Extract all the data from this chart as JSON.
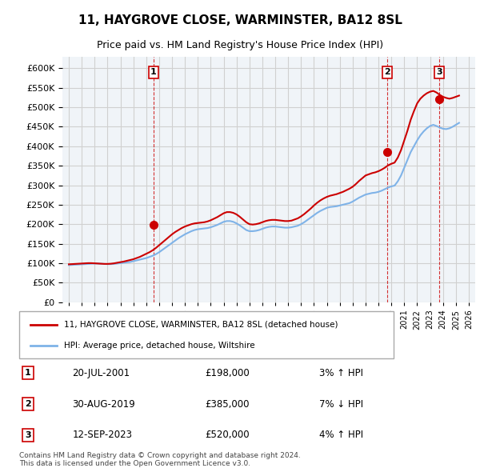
{
  "title": "11, HAYGROVE CLOSE, WARMINSTER, BA12 8SL",
  "subtitle": "Price paid vs. HM Land Registry's House Price Index (HPI)",
  "ylabel_values": [
    0,
    50000,
    100000,
    150000,
    200000,
    250000,
    300000,
    350000,
    400000,
    450000,
    500000,
    550000,
    600000
  ],
  "ylim": [
    0,
    630000
  ],
  "xlim_start": 1994.5,
  "xlim_end": 2026.5,
  "x_ticks": [
    1995,
    1996,
    1997,
    1998,
    1999,
    2000,
    2001,
    2002,
    2003,
    2004,
    2005,
    2006,
    2007,
    2008,
    2009,
    2010,
    2011,
    2012,
    2013,
    2014,
    2015,
    2016,
    2017,
    2018,
    2019,
    2020,
    2021,
    2022,
    2023,
    2024,
    2025,
    2026
  ],
  "hpi_line_color": "#7fb3e8",
  "price_line_color": "#cc0000",
  "transaction_marker_color": "#cc0000",
  "dashed_line_color": "#cc0000",
  "grid_color": "#d0d0d0",
  "background_color": "#f0f4f8",
  "legend_entry1": "11, HAYGROVE CLOSE, WARMINSTER, BA12 8SL (detached house)",
  "legend_entry2": "HPI: Average price, detached house, Wiltshire",
  "transactions": [
    {
      "label": "1",
      "date": "20-JUL-2001",
      "year": 2001.55,
      "price": 198000,
      "hpi_pct": "3%",
      "hpi_dir": "↑"
    },
    {
      "label": "2",
      "date": "30-AUG-2019",
      "year": 2019.66,
      "price": 385000,
      "hpi_pct": "7%",
      "hpi_dir": "↓"
    },
    {
      "label": "3",
      "date": "12-SEP-2023",
      "year": 2023.7,
      "price": 520000,
      "hpi_pct": "4%",
      "hpi_dir": "↑"
    }
  ],
  "footer_line1": "Contains HM Land Registry data © Crown copyright and database right 2024.",
  "footer_line2": "This data is licensed under the Open Government Licence v3.0.",
  "hpi_years": [
    1995,
    1995.25,
    1995.5,
    1995.75,
    1996,
    1996.25,
    1996.5,
    1996.75,
    1997,
    1997.25,
    1997.5,
    1997.75,
    1998,
    1998.25,
    1998.5,
    1998.75,
    1999,
    1999.25,
    1999.5,
    1999.75,
    2000,
    2000.25,
    2000.5,
    2000.75,
    2001,
    2001.25,
    2001.5,
    2001.75,
    2002,
    2002.25,
    2002.5,
    2002.75,
    2003,
    2003.25,
    2003.5,
    2003.75,
    2004,
    2004.25,
    2004.5,
    2004.75,
    2005,
    2005.25,
    2005.5,
    2005.75,
    2006,
    2006.25,
    2006.5,
    2006.75,
    2007,
    2007.25,
    2007.5,
    2007.75,
    2008,
    2008.25,
    2008.5,
    2008.75,
    2009,
    2009.25,
    2009.5,
    2009.75,
    2010,
    2010.25,
    2010.5,
    2010.75,
    2011,
    2011.25,
    2011.5,
    2011.75,
    2012,
    2012.25,
    2012.5,
    2012.75,
    2013,
    2013.25,
    2013.5,
    2013.75,
    2014,
    2014.25,
    2014.5,
    2014.75,
    2015,
    2015.25,
    2015.5,
    2015.75,
    2016,
    2016.25,
    2016.5,
    2016.75,
    2017,
    2017.25,
    2017.5,
    2017.75,
    2018,
    2018.25,
    2018.5,
    2018.75,
    2019,
    2019.25,
    2019.5,
    2019.75,
    2020,
    2020.25,
    2020.5,
    2020.75,
    2021,
    2021.25,
    2021.5,
    2021.75,
    2022,
    2022.25,
    2022.5,
    2022.75,
    2023,
    2023.25,
    2023.5,
    2023.75,
    2024,
    2024.25,
    2024.5,
    2024.75,
    2025,
    2025.25
  ],
  "hpi_values": [
    95000,
    95500,
    96000,
    96500,
    97000,
    97500,
    98000,
    98500,
    99000,
    99000,
    98500,
    98000,
    97500,
    97500,
    98000,
    99000,
    100000,
    101000,
    102000,
    103000,
    105000,
    107000,
    109000,
    111000,
    113000,
    116000,
    119000,
    123000,
    128000,
    134000,
    140000,
    146000,
    152000,
    158000,
    164000,
    169000,
    174000,
    178000,
    182000,
    185000,
    187000,
    188000,
    189000,
    190000,
    192000,
    195000,
    198000,
    202000,
    206000,
    208000,
    208000,
    206000,
    202000,
    197000,
    191000,
    185000,
    182000,
    182000,
    183000,
    185000,
    188000,
    191000,
    193000,
    194000,
    194000,
    193000,
    192000,
    191000,
    191000,
    192000,
    194000,
    196000,
    200000,
    205000,
    211000,
    217000,
    223000,
    229000,
    234000,
    238000,
    242000,
    244000,
    245000,
    246000,
    248000,
    250000,
    252000,
    254000,
    258000,
    263000,
    268000,
    272000,
    276000,
    278000,
    280000,
    281000,
    283000,
    286000,
    290000,
    294000,
    297000,
    299000,
    310000,
    325000,
    345000,
    365000,
    385000,
    400000,
    415000,
    428000,
    438000,
    446000,
    452000,
    455000,
    452000,
    448000,
    445000,
    444000,
    446000,
    450000,
    455000,
    460000
  ],
  "price_years": [
    1995,
    1995.25,
    1995.5,
    1995.75,
    1996,
    1996.25,
    1996.5,
    1996.75,
    1997,
    1997.25,
    1997.5,
    1997.75,
    1998,
    1998.25,
    1998.5,
    1998.75,
    1999,
    1999.25,
    1999.5,
    1999.75,
    2000,
    2000.25,
    2000.5,
    2000.75,
    2001,
    2001.25,
    2001.5,
    2001.75,
    2002,
    2002.25,
    2002.5,
    2002.75,
    2003,
    2003.25,
    2003.5,
    2003.75,
    2004,
    2004.25,
    2004.5,
    2004.75,
    2005,
    2005.25,
    2005.5,
    2005.75,
    2006,
    2006.25,
    2006.5,
    2006.75,
    2007,
    2007.25,
    2007.5,
    2007.75,
    2008,
    2008.25,
    2008.5,
    2008.75,
    2009,
    2009.25,
    2009.5,
    2009.75,
    2010,
    2010.25,
    2010.5,
    2010.75,
    2011,
    2011.25,
    2011.5,
    2011.75,
    2012,
    2012.25,
    2012.5,
    2012.75,
    2013,
    2013.25,
    2013.5,
    2013.75,
    2014,
    2014.25,
    2014.5,
    2014.75,
    2015,
    2015.25,
    2015.5,
    2015.75,
    2016,
    2016.25,
    2016.5,
    2016.75,
    2017,
    2017.25,
    2017.5,
    2017.75,
    2018,
    2018.25,
    2018.5,
    2018.75,
    2019,
    2019.25,
    2019.5,
    2019.75,
    2020,
    2020.25,
    2020.5,
    2020.75,
    2021,
    2021.25,
    2021.5,
    2021.75,
    2022,
    2022.25,
    2022.5,
    2022.75,
    2023,
    2023.25,
    2023.5,
    2023.75,
    2024,
    2024.25,
    2024.5,
    2024.75,
    2025,
    2025.25
  ],
  "price_values": [
    97000,
    97500,
    98000,
    98500,
    99000,
    99500,
    100000,
    100000,
    99500,
    99000,
    98500,
    98000,
    98000,
    98500,
    99500,
    101000,
    102500,
    104000,
    106000,
    108000,
    110000,
    113000,
    116000,
    120000,
    124000,
    128000,
    133000,
    139000,
    146000,
    153000,
    160000,
    167000,
    174000,
    180000,
    185000,
    190000,
    194000,
    197000,
    200000,
    202000,
    203000,
    204000,
    205000,
    207000,
    210000,
    214000,
    218000,
    223000,
    228000,
    231000,
    231000,
    229000,
    225000,
    219000,
    212000,
    205000,
    200000,
    199000,
    200000,
    202000,
    205000,
    208000,
    210000,
    211000,
    211000,
    210000,
    209000,
    208000,
    208000,
    209000,
    212000,
    215000,
    220000,
    226000,
    233000,
    240000,
    248000,
    255000,
    261000,
    266000,
    270000,
    273000,
    275000,
    277000,
    280000,
    283000,
    287000,
    291000,
    296000,
    303000,
    311000,
    318000,
    325000,
    328000,
    331000,
    333000,
    336000,
    340000,
    345000,
    351000,
    355000,
    358000,
    371000,
    390000,
    415000,
    440000,
    468000,
    490000,
    510000,
    522000,
    530000,
    536000,
    540000,
    542000,
    538000,
    532000,
    527000,
    524000,
    522000,
    524000,
    527000,
    530000
  ]
}
